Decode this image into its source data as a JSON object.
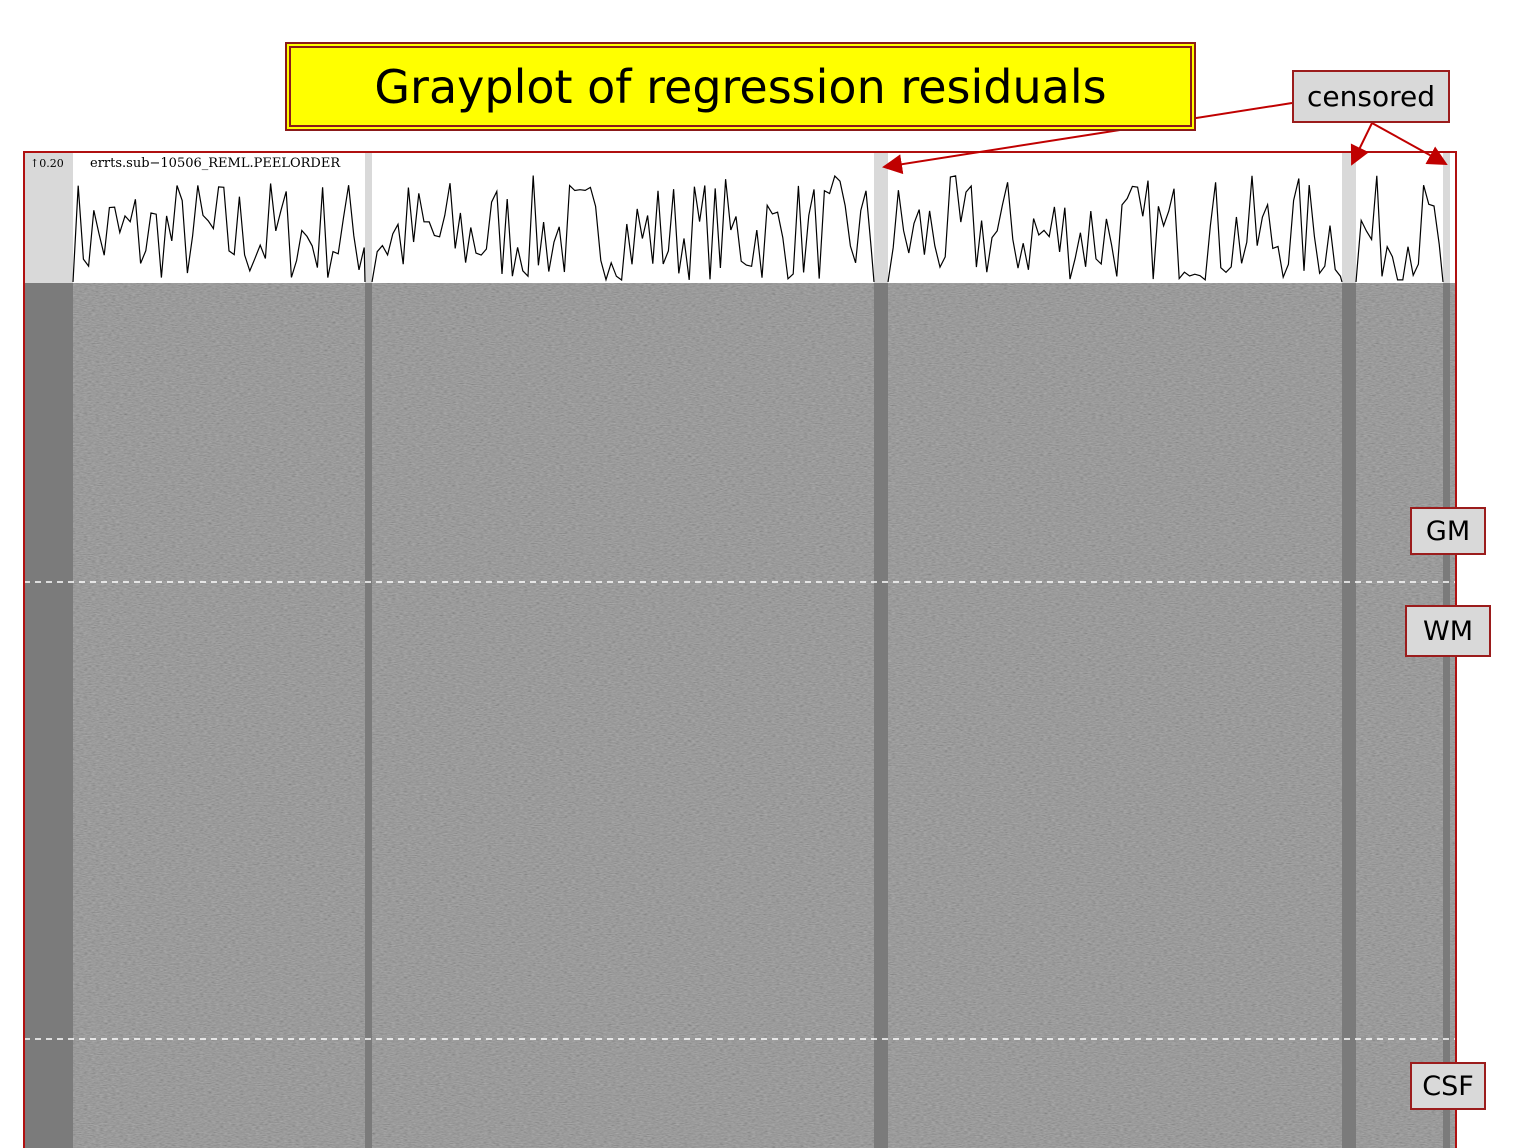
{
  "title": "Grayplot of regression residuals",
  "censored_label": "censored",
  "plot": {
    "scale_label": "↑0.20",
    "dataset_label": "errts.sub−10506_REML.PEELORDER"
  },
  "regions": [
    "GM",
    "WM",
    "CSF"
  ]
}
